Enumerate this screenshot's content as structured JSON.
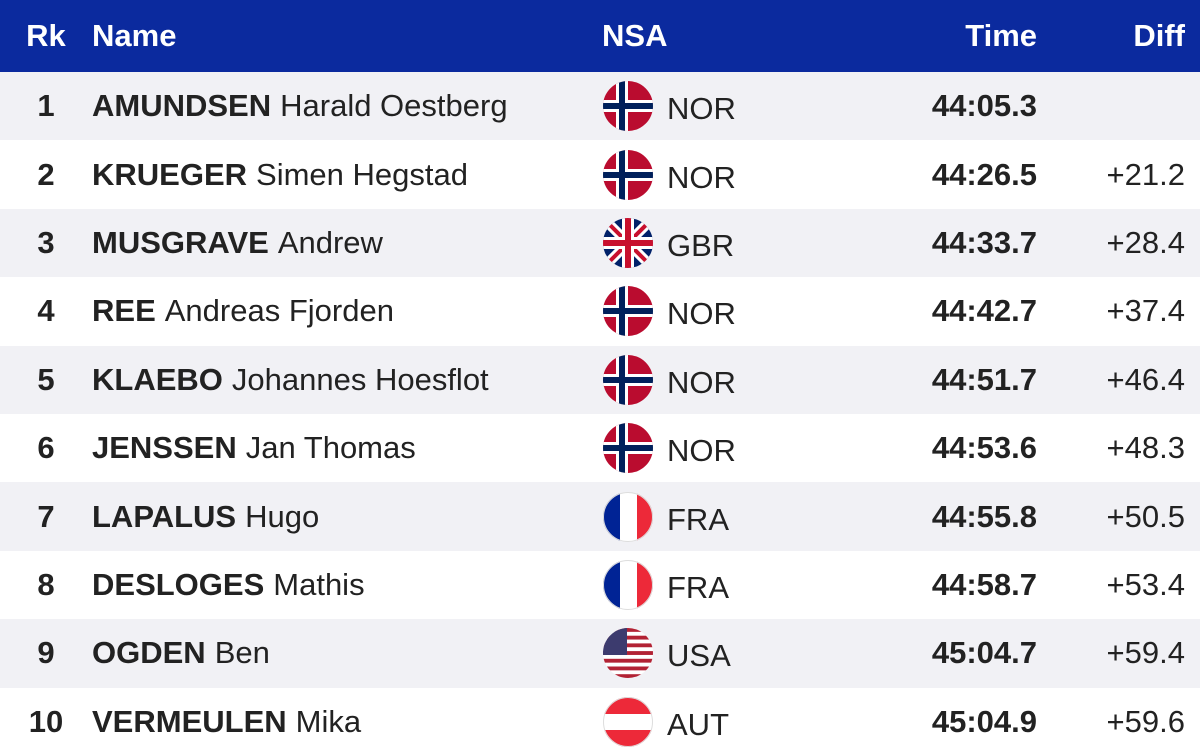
{
  "header": {
    "rank": "Rk",
    "name": "Name",
    "nsa": "NSA",
    "time": "Time",
    "diff": "Diff"
  },
  "rows": [
    {
      "rank": 1,
      "surname": "AMUNDSEN",
      "given": "Harald Oestberg",
      "nsa": "NOR",
      "time": "44:05.3"
    },
    {
      "rank": 2,
      "surname": "KRUEGER",
      "given": "Simen Hegstad",
      "nsa": "NOR",
      "time": "44:26.5",
      "diff": "+21.2"
    },
    {
      "rank": 3,
      "surname": "MUSGRAVE",
      "given": "Andrew",
      "nsa": "GBR",
      "time": "44:33.7",
      "diff": "+28.4"
    },
    {
      "rank": 4,
      "surname": "REE",
      "given": "Andreas Fjorden",
      "nsa": "NOR",
      "time": "44:42.7",
      "diff": "+37.4"
    },
    {
      "rank": 5,
      "surname": "KLAEBO",
      "given": "Johannes Hoesflot",
      "nsa": "NOR",
      "time": "44:51.7",
      "diff": "+46.4"
    },
    {
      "rank": 6,
      "surname": "JENSSEN",
      "given": "Jan Thomas",
      "nsa": "NOR",
      "time": "44:53.6",
      "diff": "+48.3"
    },
    {
      "rank": 7,
      "surname": "LAPALUS",
      "given": "Hugo",
      "nsa": "FRA",
      "time": "44:55.8",
      "diff": "+50.5"
    },
    {
      "rank": 8,
      "surname": "DESLOGES",
      "given": "Mathis",
      "nsa": "FRA",
      "time": "44:58.7",
      "diff": "+53.4"
    },
    {
      "rank": 9,
      "surname": "OGDEN",
      "given": "Ben",
      "nsa": "USA",
      "time": "45:04.7",
      "diff": "+59.4"
    },
    {
      "rank": 10,
      "surname": "VERMEULEN",
      "given": "Mika",
      "nsa": "AUT",
      "time": "45:04.9",
      "diff": "+59.6"
    }
  ]
}
